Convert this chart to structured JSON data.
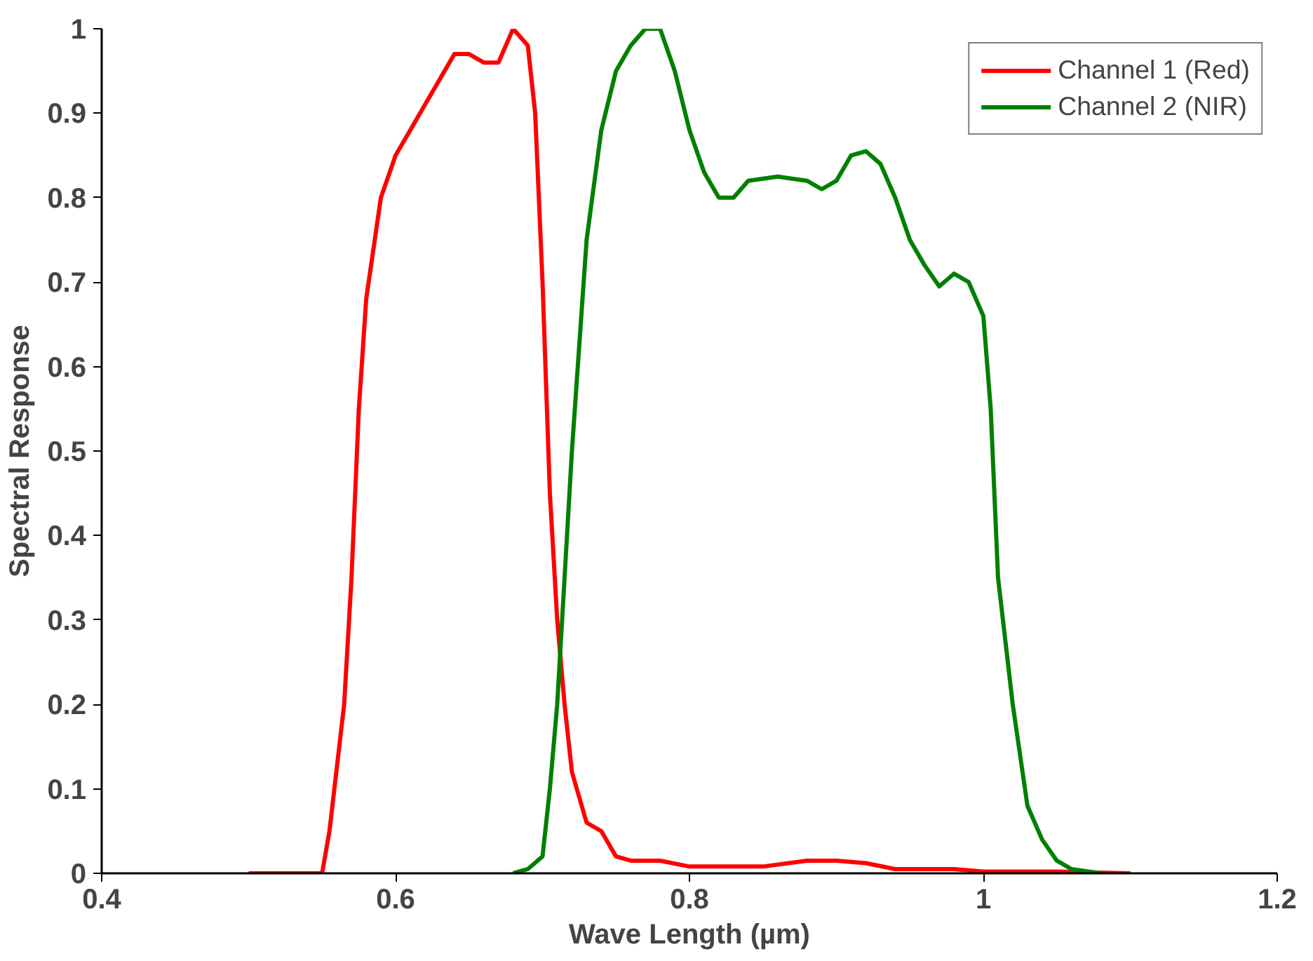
{
  "chart_data": {
    "type": "line",
    "xlabel": "Wave Length (µm)",
    "ylabel": "Spectral Response",
    "xlim": [
      0.4,
      1.2
    ],
    "xticks": [
      0.4,
      0.6,
      0.8,
      1,
      1.2
    ],
    "ylim": [
      0,
      1
    ],
    "yticks": [
      0,
      0.1,
      0.2,
      0.3,
      0.4,
      0.5,
      0.6,
      0.7,
      0.8,
      0.9,
      1
    ],
    "grid": false,
    "legend": "top right",
    "marker": "none",
    "line_style": "solid",
    "series": [
      {
        "name": "Channel 1 (Red)",
        "color": "#ff0000",
        "x": [
          0.5,
          0.55,
          0.555,
          0.565,
          0.57,
          0.575,
          0.58,
          0.59,
          0.6,
          0.61,
          0.62,
          0.63,
          0.64,
          0.65,
          0.66,
          0.67,
          0.68,
          0.69,
          0.695,
          0.7,
          0.705,
          0.71,
          0.715,
          0.72,
          0.73,
          0.74,
          0.75,
          0.76,
          0.78,
          0.8,
          0.85,
          0.88,
          0.9,
          0.92,
          0.94,
          0.98,
          1.0,
          1.05,
          1.1
        ],
        "values": [
          0,
          0,
          0.05,
          0.2,
          0.35,
          0.55,
          0.68,
          0.8,
          0.85,
          0.88,
          0.91,
          0.94,
          0.97,
          0.97,
          0.96,
          0.96,
          1.0,
          0.98,
          0.9,
          0.7,
          0.45,
          0.3,
          0.2,
          0.12,
          0.06,
          0.05,
          0.02,
          0.015,
          0.015,
          0.008,
          0.008,
          0.015,
          0.015,
          0.012,
          0.005,
          0.005,
          0.002,
          0.002,
          0
        ]
      },
      {
        "name": "Channel 2 (NIR)",
        "color": "#008000",
        "x": [
          0.68,
          0.69,
          0.7,
          0.705,
          0.71,
          0.715,
          0.72,
          0.73,
          0.74,
          0.75,
          0.76,
          0.77,
          0.78,
          0.79,
          0.8,
          0.81,
          0.82,
          0.83,
          0.84,
          0.86,
          0.88,
          0.89,
          0.9,
          0.91,
          0.92,
          0.93,
          0.94,
          0.95,
          0.96,
          0.97,
          0.98,
          0.99,
          1.0,
          1.005,
          1.01,
          1.02,
          1.03,
          1.04,
          1.05,
          1.06,
          1.08
        ],
        "values": [
          0,
          0.005,
          0.02,
          0.1,
          0.2,
          0.35,
          0.5,
          0.75,
          0.88,
          0.95,
          0.98,
          1.0,
          1.0,
          0.95,
          0.88,
          0.83,
          0.8,
          0.8,
          0.82,
          0.825,
          0.82,
          0.81,
          0.82,
          0.85,
          0.855,
          0.84,
          0.8,
          0.75,
          0.72,
          0.695,
          0.71,
          0.7,
          0.66,
          0.55,
          0.35,
          0.2,
          0.08,
          0.04,
          0.015,
          0.005,
          0
        ]
      }
    ]
  }
}
